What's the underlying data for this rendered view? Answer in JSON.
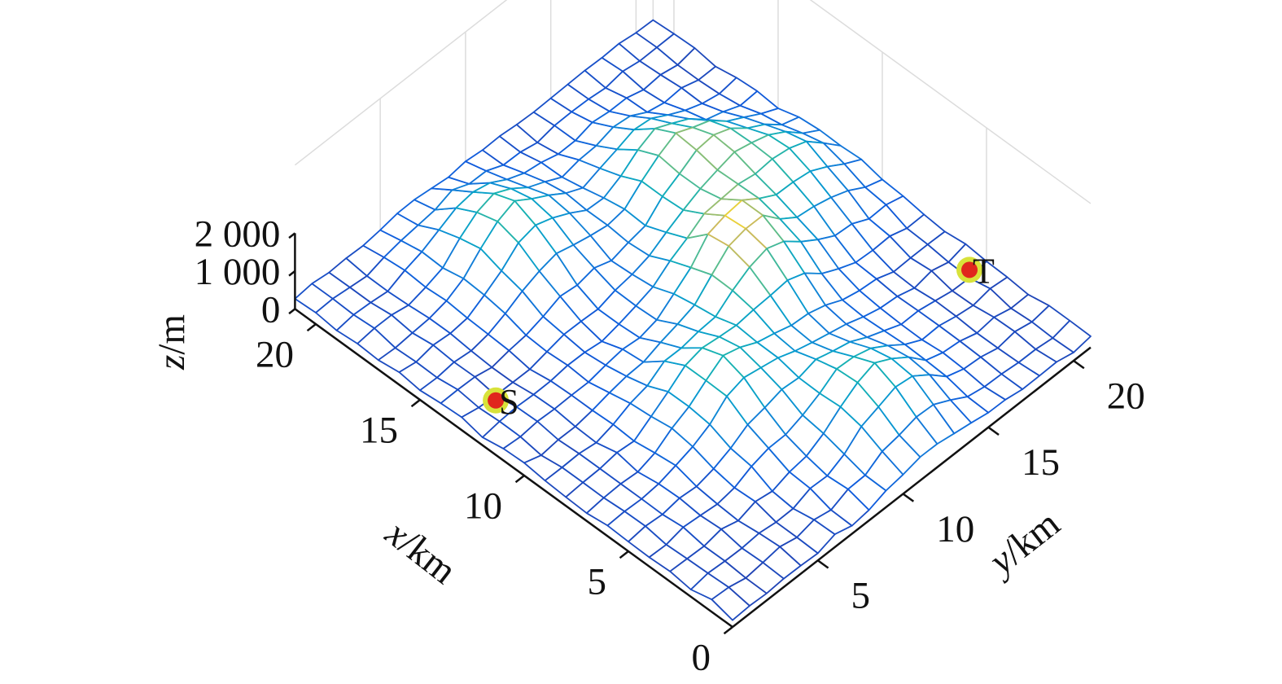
{
  "chart_data": {
    "type": "surface",
    "xlabel": {
      "var": "x",
      "unit": "/km"
    },
    "ylabel": {
      "var": "y",
      "unit": "/km"
    },
    "zlabel": {
      "var": "z",
      "unit": "/m"
    },
    "x_ticks": [
      "0",
      "5",
      "10",
      "15",
      "20"
    ],
    "y_ticks": [
      "5",
      "10",
      "15",
      "20"
    ],
    "z_ticks": [
      "0",
      "1 000",
      "2 000"
    ],
    "x_range": [
      0,
      21
    ],
    "y_range": [
      0,
      21
    ],
    "z_range": [
      0,
      2000
    ],
    "grid": true,
    "colormap": "parula",
    "grid_step_km": 1,
    "peaks": [
      {
        "x": 7,
        "y": 8,
        "height_m": 1200
      },
      {
        "x": 10,
        "y": 13,
        "height_m": 1800
      },
      {
        "x": 15,
        "y": 15,
        "height_m": 1300
      },
      {
        "x": 17,
        "y": 8,
        "height_m": 1300
      },
      {
        "x": 3,
        "y": 12,
        "height_m": 1200
      },
      {
        "x": 12,
        "y": 18,
        "height_m": 1100
      }
    ],
    "markers": [
      {
        "label": "S",
        "x": 13,
        "y": 2,
        "z": 80
      },
      {
        "label": "T",
        "x": 5,
        "y": 20,
        "z": 400
      }
    ],
    "marker_colors": {
      "fill": "#e0261d",
      "halo": "#d8e23a"
    }
  }
}
